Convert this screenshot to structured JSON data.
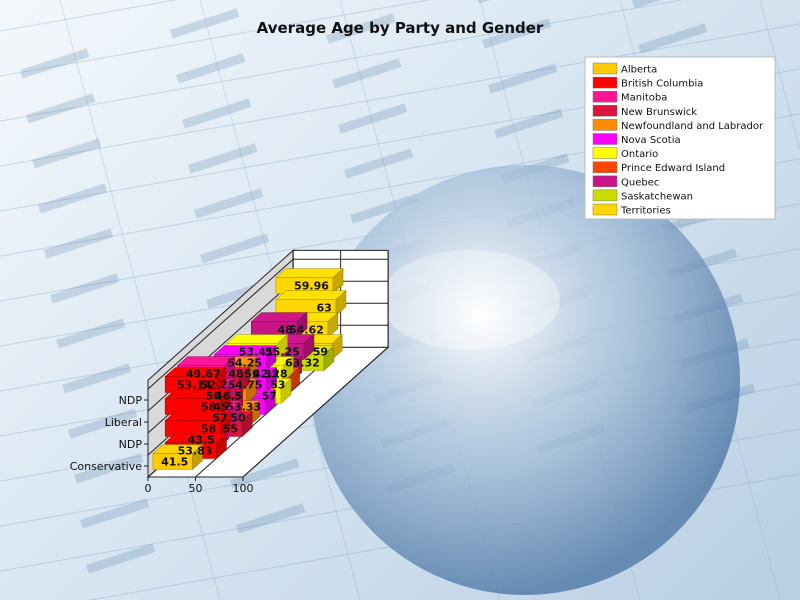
{
  "chart_data": {
    "type": "bar",
    "title": "Average Age by Party and Gender",
    "categories": [
      "Conservative",
      "NDP",
      "Liberal",
      "NDP"
    ],
    "xticks": [
      "0",
      "50",
      "100"
    ],
    "xlim": [
      0,
      100
    ],
    "series": [
      {
        "name": "Alberta",
        "color": "#ffcc00",
        "values": [
          41.5,
          null,
          null,
          null
        ]
      },
      {
        "name": "British Columbia",
        "color": "#ff0000",
        "values": [
          53.83,
          58,
          58,
          53.14
        ]
      },
      {
        "name": "Manitoba",
        "color": "#ff1493",
        "values": [
          43.5,
          57,
          50,
          49.67
        ]
      },
      {
        "name": "New Brunswick",
        "color": "#dc143c",
        "values": [
          55,
          45,
          52.25,
          null
        ]
      },
      {
        "name": "Newfoundland and Labrador",
        "color": "#ff8c00",
        "values": [
          50,
          46.5,
          48,
          null
        ]
      },
      {
        "name": "Nova Scotia",
        "color": "#ff00ff",
        "values": [
          53.33,
          54.75,
          54.25,
          null
        ]
      },
      {
        "name": "Ontario",
        "color": "#ffff00",
        "values": [
          57,
          59.33,
          53.41,
          null
        ]
      },
      {
        "name": "Prince Edward Island",
        "color": "#ff4500",
        "values": [
          53,
          null,
          null,
          null
        ]
      },
      {
        "name": "Quebec",
        "color": "#c71585",
        "values": [
          42.28,
          55.25,
          48,
          null
        ]
      },
      {
        "name": "Saskatchewan",
        "color": "#cddc00",
        "values": [
          63.32,
          null,
          null,
          null
        ]
      },
      {
        "name": "Territories",
        "color": "#ffd700",
        "values": [
          59,
          54.62,
          63,
          59.96
        ]
      }
    ],
    "legend_position": "top-right",
    "grid": true
  }
}
